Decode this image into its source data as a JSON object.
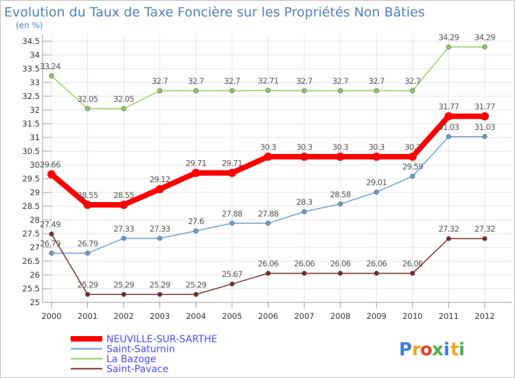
{
  "chart_data": {
    "type": "line",
    "title": "Evolution du Taux de Taxe Foncière sur les Propriétés Non Bâties",
    "ylabel": "(en %)",
    "xlabel": "",
    "ylim": [
      25,
      34.5
    ],
    "yticks": [
      "25",
      "25.5",
      "26",
      "26.5",
      "27",
      "27.5",
      "28",
      "28.5",
      "29",
      "29.5",
      "30",
      "30.5",
      "31",
      "31.5",
      "32",
      "32.5",
      "33",
      "33.5",
      "34",
      "34.5"
    ],
    "x": [
      "2000",
      "2001",
      "2002",
      "2003",
      "2004",
      "2005",
      "2006",
      "2007",
      "2008",
      "2009",
      "2010",
      "2011",
      "2012"
    ],
    "grid": true,
    "legend_position": "bottom-left",
    "series": [
      {
        "name": "NEUVILLE-SUR-SARTHE",
        "color": "#ff0000",
        "values": [
          29.66,
          28.55,
          28.55,
          29.12,
          29.71,
          29.71,
          30.3,
          30.3,
          30.3,
          30.3,
          30.3,
          31.77,
          31.77
        ],
        "labels": [
          "29.66",
          "28.55",
          "28.55",
          "29.12",
          "29.71",
          "29.71",
          "30.3",
          "30.3",
          "30.3",
          "30.3",
          "30.3",
          "31.77",
          "31.77"
        ]
      },
      {
        "name": "Saint-Saturnin",
        "color": "#6a9fd4",
        "values": [
          26.79,
          26.79,
          27.33,
          27.33,
          27.6,
          27.88,
          27.88,
          28.3,
          28.58,
          29.01,
          29.59,
          31.03,
          31.03
        ],
        "labels": [
          "26.79",
          "26.79",
          "27.33",
          "27.33",
          "27.6",
          "27.88",
          "27.88",
          "28.3",
          "28.58",
          "29.01",
          "29.59",
          "31.03",
          "31.03"
        ]
      },
      {
        "name": "La Bazoge",
        "color": "#8fd160",
        "values": [
          33.24,
          32.05,
          32.05,
          32.7,
          32.7,
          32.7,
          32.71,
          32.7,
          32.7,
          32.7,
          32.7,
          34.29,
          34.29
        ],
        "labels": [
          "33.24",
          "32.05",
          "32.05",
          "32.7",
          "32.7",
          "32.7",
          "32.71",
          "32.7",
          "32.7",
          "32.7",
          "32.7",
          "34.29",
          "34.29"
        ]
      },
      {
        "name": "Saint-Pavace",
        "color": "#7a2a2a",
        "values": [
          27.49,
          25.29,
          25.29,
          25.29,
          25.29,
          25.67,
          26.06,
          26.06,
          26.06,
          26.06,
          26.06,
          27.32,
          27.32
        ],
        "labels": [
          "27.49",
          "25.29",
          "25.29",
          "25.29",
          "25.29",
          "25.67",
          "26.06",
          "26.06",
          "26.06",
          "26.06",
          "26.06",
          "27.32",
          "27.32"
        ]
      }
    ]
  },
  "logo": {
    "letters": [
      "P",
      "r",
      "o",
      "x",
      "i",
      "t",
      "i"
    ],
    "colors": [
      "#3d7fd6",
      "#f2a623",
      "#e8402b",
      "#4caf50",
      "#3d7fd6",
      "#f2a623",
      "#4caf50"
    ]
  }
}
